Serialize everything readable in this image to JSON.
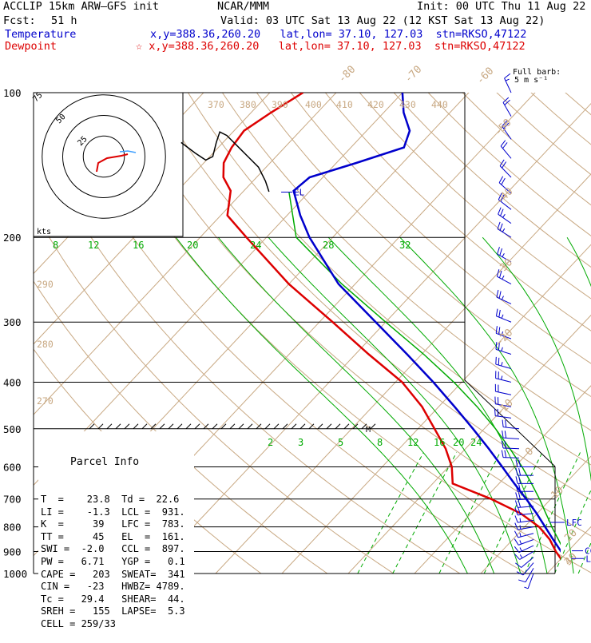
{
  "header": {
    "title": "ACCLIP 15km ARW–GFS init",
    "org": "NCAR/MMM",
    "init": "Init: 00 UTC Thu 11 Aug 22",
    "fcst_label": "Fcst:",
    "fcst_value": "51 h",
    "valid": "Valid: 03 UTC Sat 13 Aug 22 (12 KST Sat 13 Aug 22)",
    "temp_label": "Temperature",
    "temp_info": "x,y=388.36,260.20   lat,lon= 37.10, 127.03  stn=RKSO,47122",
    "dew_label": "Dewpoint",
    "dew_info": "☆ x,y=388.36,260.20   lat,lon= 37.10, 127.03  stn=RKSO,47122",
    "full_barb": "Full barb:",
    "full_barb_units": "5 m s⁻¹"
  },
  "parcel": {
    "title": "Parcel Info",
    "rows": [
      "T  =    23.8  Td =  22.6",
      "LI =    -1.3  LCL =  931.",
      "K  =     39   LFC =  783.",
      "TT =     45   EL  =  161.",
      "SWI =  -2.0   CCL =  897.",
      "PW =   6.71   YGP =   0.1",
      "CAPE =   203  SWEAT=  341",
      "CIN =   -23   HWBZ= 4789.",
      "Tc =   29.4   SHEAR=  44.",
      "SREH =   155  LAPSE=  5.3",
      "CELL = 259/33"
    ]
  },
  "chart_data": {
    "type": "skew-t",
    "pressure_ticks": [
      "100",
      "200",
      "300",
      "400",
      "500",
      "600",
      "700",
      "800",
      "900",
      "1000"
    ],
    "temperature_ticks": [
      "-80",
      "-70",
      "-60",
      "-50",
      "-40",
      "-30",
      "-20",
      "-10",
      "0",
      "10",
      "20",
      "30",
      "40"
    ],
    "theta_ticks": [
      "370",
      "380",
      "390",
      "400",
      "410",
      "420",
      "430",
      "440"
    ],
    "theta_left_ticks": [
      "290",
      "280",
      "270"
    ],
    "theta_e_ticks": [
      "8",
      "12",
      "16",
      "20",
      "24",
      "28",
      "32"
    ],
    "mixing_ratio_ticks": [
      "2",
      "3",
      "5",
      "8",
      "12",
      "16",
      "20",
      "24"
    ],
    "hodograph_rings": [
      "75",
      "50",
      "25"
    ],
    "hodograph_units": "kts",
    "levels": {
      "el": "EL",
      "lfc": "LFC",
      "ccl": "CCL",
      "lcl": "LCL",
      "m": "M"
    },
    "temperature": {
      "name": "Temperature",
      "color": "#0000cc",
      "p": [
        1000,
        950,
        900,
        850,
        800,
        750,
        700,
        650,
        600,
        550,
        500,
        450,
        400,
        350,
        300,
        250,
        200,
        180,
        160,
        150,
        140,
        130,
        120,
        110,
        100
      ],
      "t": [
        23.8,
        21.9,
        19.0,
        16.1,
        13.1,
        9.9,
        6.3,
        2.3,
        -1.9,
        -6.5,
        -11.7,
        -17.6,
        -24.3,
        -32.2,
        -41.5,
        -52.5,
        -63.5,
        -68.0,
        -72.5,
        -72.0,
        -67.0,
        -62.0,
        -63.5,
        -67.0,
        -70.0
      ]
    },
    "dewpoint": {
      "name": "Dewpoint",
      "color": "#dd0000",
      "p": [
        1000,
        950,
        900,
        850,
        800,
        750,
        700,
        650,
        600,
        550,
        500,
        450,
        400,
        350,
        300,
        250,
        200,
        180,
        160,
        150,
        140,
        130,
        120,
        110,
        100
      ],
      "td": [
        22.6,
        21.0,
        18.2,
        15.6,
        12.2,
        7.5,
        1.0,
        -7.0,
        -9.5,
        -13.0,
        -17.5,
        -22.5,
        -29.0,
        -38.0,
        -48.0,
        -60.0,
        -73.0,
        -79.0,
        -82.0,
        -85.0,
        -87.0,
        -88.0,
        -88.5,
        -87.0,
        -85.0
      ]
    },
    "parcel_curve": {
      "p": [
        930,
        900,
        850,
        800,
        783,
        750,
        700,
        650,
        600,
        550,
        500,
        450,
        400,
        350,
        300,
        250,
        200,
        161
      ],
      "t": [
        21.0,
        19.5,
        16.9,
        14.1,
        13.2,
        11.3,
        8.3,
        4.9,
        1.1,
        -3.3,
        -8.3,
        -14.2,
        -21.2,
        -29.7,
        -40.0,
        -52.0,
        -65.5,
        -73.0
      ]
    },
    "wind_barbs": {
      "color": "#0000cc",
      "p": [
        1000,
        975,
        950,
        925,
        900,
        875,
        850,
        825,
        800,
        775,
        750,
        725,
        700,
        675,
        650,
        625,
        600,
        575,
        550,
        525,
        500,
        475,
        450,
        425,
        400,
        375,
        350,
        325,
        300,
        275,
        250,
        225,
        200,
        187,
        175,
        162,
        150,
        137,
        125,
        112,
        100
      ],
      "dir": [
        200,
        210,
        220,
        230,
        240,
        245,
        250,
        255,
        260,
        262,
        264,
        266,
        268,
        270,
        270,
        270,
        270,
        272,
        272,
        274,
        276,
        278,
        280,
        282,
        284,
        286,
        288,
        290,
        292,
        295,
        298,
        300,
        302,
        305,
        308,
        312,
        316,
        320,
        325,
        330,
        335
      ],
      "spd_ms": [
        3,
        4,
        5,
        6,
        7,
        7,
        8,
        8,
        8,
        8,
        9,
        9,
        9,
        9,
        9,
        10,
        10,
        10,
        10,
        10,
        11,
        11,
        11,
        11,
        12,
        12,
        12,
        12,
        13,
        13,
        13,
        12,
        12,
        12,
        11,
        11,
        10,
        10,
        9,
        9,
        8
      ]
    },
    "hodograph": {
      "blue": {
        "u": [
          14,
          18,
          22
        ],
        "v": [
          6,
          8,
          6
        ]
      },
      "red": {
        "u": [
          -16,
          -14,
          -8,
          0,
          8,
          14
        ],
        "v": [
          -14,
          -6,
          -2,
          0,
          0,
          4
        ]
      },
      "black": {
        "u": [
          14,
          20,
          26,
          30,
          34,
          36
        ],
        "v": [
          4,
          10,
          14,
          8,
          -4,
          -14
        ]
      }
    },
    "colors": {
      "isotherm": "#c8a882",
      "dry_adiabat": "#c8a882",
      "moist_adiabat": "#00aa00",
      "mixing_ratio": "#00aa00",
      "isobar": "#000000",
      "parcel": "#00aa00"
    }
  }
}
